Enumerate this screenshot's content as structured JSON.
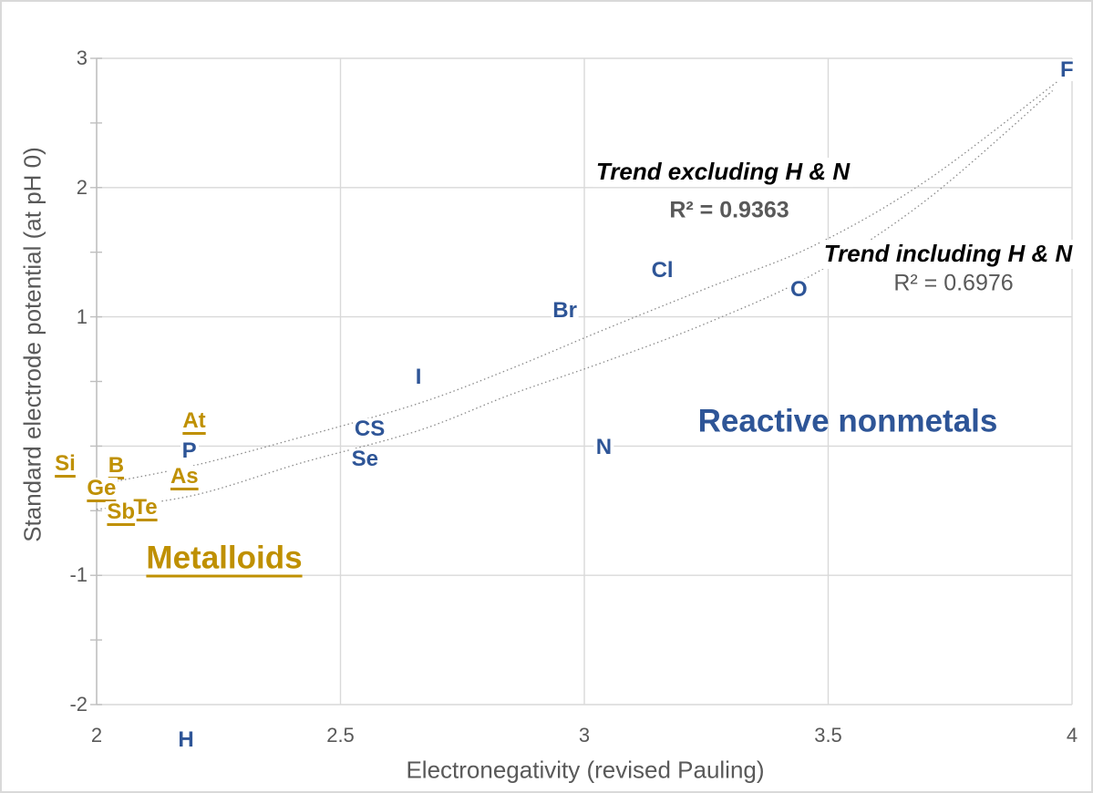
{
  "colors": {
    "nonmetal_blue": "#2E5597",
    "metalloid_gold": "#BF9000",
    "gridline": "#D9D9D9",
    "axis_line": "#BFBFBF",
    "tick_text": "#595959",
    "trend_line": "#8a8a8a",
    "annotation_black": "#000000"
  },
  "axes": {
    "x": {
      "title": "Electronegativity (revised Pauling)",
      "min": 2,
      "max": 4,
      "ticks": [
        {
          "v": 2,
          "label": "2"
        },
        {
          "v": 2.5,
          "label": "2.5"
        },
        {
          "v": 3,
          "label": "3"
        },
        {
          "v": 3.5,
          "label": "3.5"
        },
        {
          "v": 4,
          "label": "4"
        }
      ]
    },
    "y": {
      "title": "Standard electrode potential (at pH 0)",
      "min": -2,
      "max": 3,
      "minor_step": 0.5,
      "gridline_values": [
        3,
        2,
        1,
        0,
        -1,
        -2
      ],
      "ticks": [
        {
          "v": 3,
          "label": "3"
        },
        {
          "v": 2,
          "label": "2"
        },
        {
          "v": 1,
          "label": "1"
        },
        {
          "v": -1,
          "label": "-1"
        },
        {
          "v": -2,
          "label": "-2"
        }
      ]
    }
  },
  "chart_data": {
    "type": "scatter",
    "xlabel": "Electronegativity (revised Pauling)",
    "ylabel": "Standard electrode potential (at pH 0)",
    "xlim": [
      2,
      4
    ],
    "ylim": [
      -2,
      3
    ],
    "grid": true,
    "series": [
      {
        "name": "Reactive nonmetals",
        "color": "#2E5597",
        "underline": false,
        "points": [
          {
            "label": "F",
            "x": 3.98,
            "y": 2.87,
            "dx": 5,
            "dy": -5
          },
          {
            "label": "O",
            "x": 3.44,
            "y": 1.21
          },
          {
            "label": "Cl",
            "x": 3.16,
            "y": 1.36
          },
          {
            "label": "Br",
            "x": 2.96,
            "y": 1.05
          },
          {
            "label": "I",
            "x": 2.66,
            "y": 0.53
          },
          {
            "label": "CS",
            "x": 2.56,
            "y": 0.13
          },
          {
            "label": "Se",
            "x": 2.55,
            "y": -0.1
          },
          {
            "label": "N",
            "x": 3.04,
            "y": -0.01
          },
          {
            "label": "P",
            "x": 2.19,
            "y": -0.04
          },
          {
            "label": "H",
            "x": 2.2,
            "y": 0.0,
            "dx": -9,
            "dy": 323
          }
        ]
      },
      {
        "name": "Metalloids",
        "color": "#BF9000",
        "underline": true,
        "points": [
          {
            "label": "At",
            "x": 2.2,
            "y": 0.19
          },
          {
            "label": "Si",
            "x": 1.9,
            "y": -0.14,
            "dx": 19
          },
          {
            "label": "B",
            "x": 2.04,
            "y": -0.15
          },
          {
            "label": "Ge",
            "x": 2.01,
            "y": -0.33
          },
          {
            "label": "As",
            "x": 2.18,
            "y": -0.24
          },
          {
            "label": "Te",
            "x": 2.1,
            "y": -0.48
          },
          {
            "label": "Sb",
            "x": 2.05,
            "y": -0.51
          }
        ]
      }
    ],
    "trend_lines": [
      {
        "name": "Trend excluding H & N",
        "r_squared": 0.9363,
        "points": [
          [
            2.0,
            -0.3
          ],
          [
            2.2,
            -0.15
          ],
          [
            2.42,
            0.07
          ],
          [
            2.66,
            0.33
          ],
          [
            2.85,
            0.6
          ],
          [
            3.04,
            0.9
          ],
          [
            3.25,
            1.22
          ],
          [
            3.47,
            1.55
          ],
          [
            3.7,
            2.05
          ],
          [
            3.97,
            2.82
          ]
        ]
      },
      {
        "name": "Trend including H & N",
        "r_squared": 0.6976,
        "points": [
          [
            2.0,
            -0.49
          ],
          [
            2.2,
            -0.38
          ],
          [
            2.42,
            -0.13
          ],
          [
            2.66,
            0.12
          ],
          [
            2.85,
            0.4
          ],
          [
            3.04,
            0.65
          ],
          [
            3.25,
            0.95
          ],
          [
            3.47,
            1.33
          ],
          [
            3.7,
            1.9
          ],
          [
            3.96,
            2.75
          ]
        ]
      }
    ]
  },
  "annotations": {
    "trend_excl": {
      "title": "Trend excluding H & N",
      "r2": "R² = 0.9363"
    },
    "trend_incl": {
      "title": "Trend including H & N",
      "r2": "R² = 0.6976"
    },
    "region_nonmetals": "Reactive nonmetals",
    "region_metalloids": "Metalloids"
  }
}
